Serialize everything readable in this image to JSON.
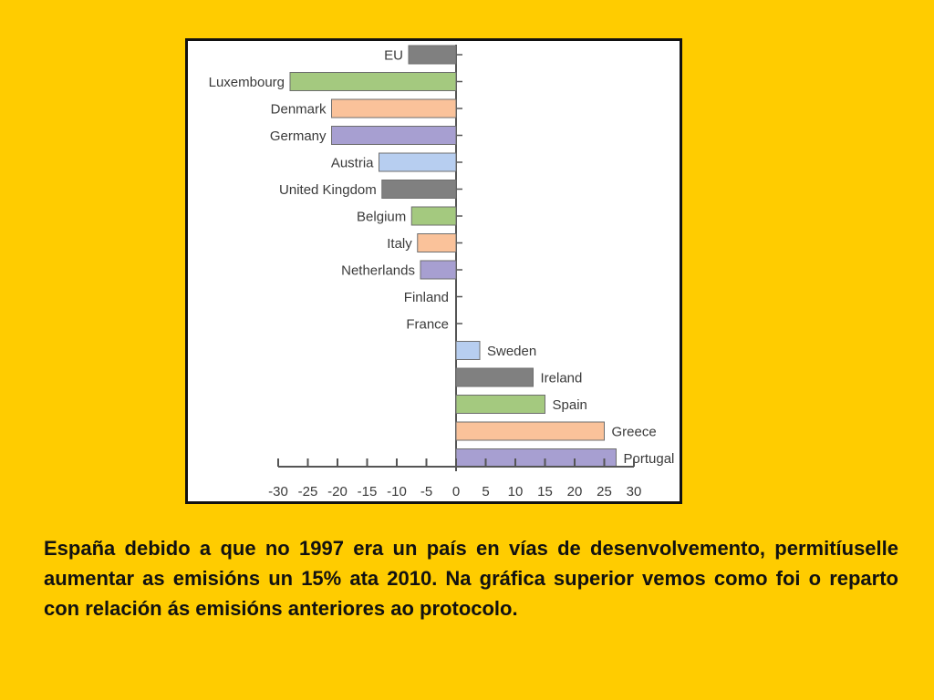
{
  "chart_data": {
    "type": "bar",
    "orientation": "horizontal",
    "categories": [
      "EU",
      "Luxembourg",
      "Denmark",
      "Germany",
      "Austria",
      "United Kingdom",
      "Belgium",
      "Italy",
      "Netherlands",
      "Finland",
      "France",
      "Sweden",
      "Ireland",
      "Spain",
      "Greece",
      "Portugal"
    ],
    "values": [
      -8,
      -28,
      -21,
      -21,
      -13,
      -12.5,
      -7.5,
      -6.5,
      -6,
      0,
      0,
      4,
      13,
      15,
      25,
      27
    ],
    "bar_colors": [
      "#808080",
      "#A4C97F",
      "#FAC29A",
      "#A79FD1",
      "#B7CEF0",
      "#808080",
      "#A4C97F",
      "#FAC29A",
      "#A79FD1",
      "#B7CEF0",
      "#808080",
      "#B7CEF0",
      "#808080",
      "#A4C97F",
      "#FAC29A",
      "#A79FD1"
    ],
    "x_ticks": [
      -30,
      -25,
      -20,
      -15,
      -10,
      -5,
      0,
      5,
      10,
      15,
      20,
      25,
      30
    ],
    "xlim": [
      -30,
      30
    ],
    "xlabel": "",
    "ylabel": "",
    "title": "",
    "grid": false,
    "legend": "none"
  },
  "caption": "España debido a que no 1997 era un país en vías de desenvolvemento, permitíuselle aumentar as emisións un 15% ata 2010. Na gráfica superior vemos como foi o reparto con relación ás emisións anteriores ao protocolo.",
  "colors": {
    "background": "#FFCC00",
    "frame_border": "#111111",
    "axis": "#555555",
    "label_text": "#3A3A3A"
  }
}
